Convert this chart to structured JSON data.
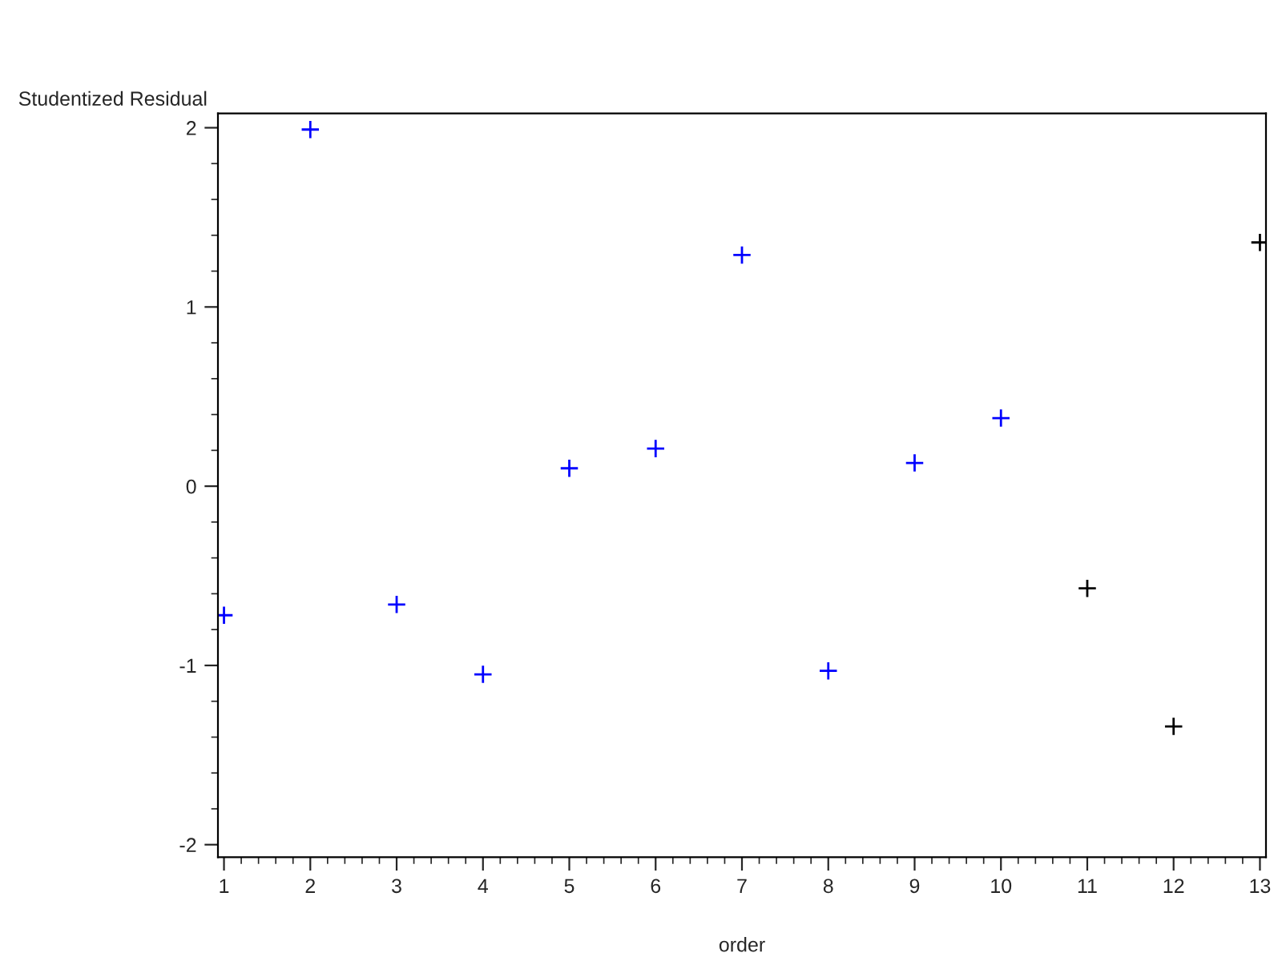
{
  "chart_data": {
    "type": "scatter",
    "xlabel": "order",
    "ylabel": "Studentized Residual",
    "series": [
      {
        "color": "#0000ff",
        "x": [
          1,
          2,
          3,
          4,
          5,
          6,
          7,
          8,
          9,
          10
        ],
        "values": [
          -0.72,
          1.99,
          -0.66,
          -1.05,
          0.1,
          0.21,
          1.29,
          -1.03,
          0.13,
          0.38
        ]
      },
      {
        "color": "#000000",
        "x": [
          11,
          12,
          13
        ],
        "values": [
          -0.57,
          -1.34,
          1.36
        ]
      }
    ],
    "xlim": [
      0.93,
      13.07
    ],
    "xticks": [
      1,
      2,
      3,
      4,
      5,
      6,
      7,
      8,
      9,
      10,
      11,
      12,
      13
    ],
    "ylim": [
      -2.07,
      2.08
    ],
    "yticks": [
      -2,
      -1,
      0,
      1,
      2
    ],
    "marker": "cross",
    "grid": false,
    "legend": false
  }
}
